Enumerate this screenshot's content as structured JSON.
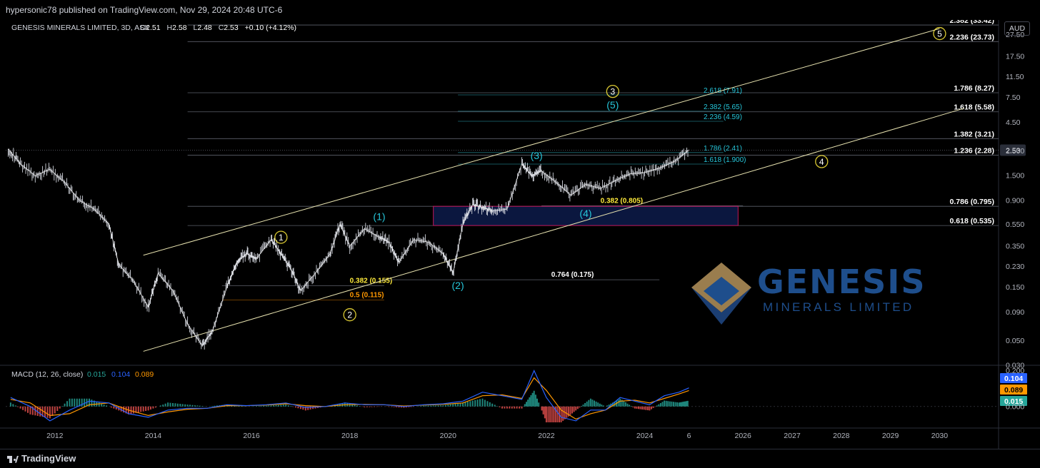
{
  "header": {
    "publish_line": "hypersonic78 published on TradingView.com, Nov 29, 2024 20:48 UTC-6",
    "symbol_line": "GENESIS MINERALS LIMITED, 3D, ASX",
    "ohlc": {
      "o_label": "O",
      "o": "2.51",
      "h_label": "H",
      "h": "2.58",
      "l_label": "L",
      "l": "2.48",
      "c_label": "C",
      "c": "2.53",
      "change": "+0.10 (+4.12%)"
    },
    "currency": "AUD"
  },
  "footer": {
    "brand": "TradingView"
  },
  "logo": {
    "line1": "GENESIS",
    "line2": "MINERALS LIMITED"
  },
  "colors": {
    "up": "#26a69a",
    "down": "#ef5350",
    "cyan": "#26c6da",
    "yellow": "#ffeb3b",
    "orange": "#ff9800",
    "macd": "#2962ff",
    "signal": "#ff9800",
    "box_border": "#c2185b",
    "box_fill": "#0d1b4a",
    "channel": "#e8e3b0",
    "price_tag": "#2a2e39"
  },
  "chart_data": [
    {
      "type": "line",
      "title": "GENESIS MINERALS LIMITED, 3D, ASX",
      "y_scale": "log",
      "ylim": [
        0.03,
        36
      ],
      "xlim": [
        2011.0,
        2031.2
      ],
      "x_ticks": [
        "2012",
        "2014",
        "2016",
        "2018",
        "2020",
        "2022",
        "2024",
        "6",
        "2026",
        "2027",
        "2028",
        "2029",
        "2030"
      ],
      "x_tick_values": [
        2012,
        2014,
        2016,
        2018,
        2020,
        2022,
        2024,
        2024.9,
        2026,
        2027,
        2028,
        2029,
        2030
      ],
      "y_ticks": [
        "27.50",
        "17.50",
        "11.50",
        "7.50",
        "4.50",
        "2.500",
        "1.500",
        "0.900",
        "0.550",
        "0.350",
        "0.230",
        "0.150",
        "0.090",
        "0.050",
        "0.030"
      ],
      "y_tick_values": [
        27.5,
        17.5,
        11.5,
        7.5,
        4.5,
        2.5,
        1.5,
        0.9,
        0.55,
        0.35,
        0.23,
        0.15,
        0.09,
        0.05,
        0.03
      ],
      "series": [
        {
          "x": [
            2011.05,
            2011.3,
            2011.6,
            2011.9,
            2012.2,
            2012.5,
            2012.8,
            2013.1,
            2013.3,
            2013.6,
            2013.9,
            2014.1,
            2014.4,
            2014.7,
            2015.0,
            2015.2,
            2015.5,
            2015.7,
            2015.9,
            2016.1,
            2016.4,
            2016.6,
            2016.8,
            2017.0,
            2017.3,
            2017.6,
            2017.8,
            2018.0,
            2018.3,
            2018.6,
            2018.8,
            2019.0,
            2019.3,
            2019.6,
            2019.9,
            2020.1,
            2020.3,
            2020.5,
            2020.7,
            2020.9,
            2021.2,
            2021.5,
            2021.7,
            2021.9,
            2022.2,
            2022.5,
            2022.8,
            2023.1,
            2023.4,
            2023.7,
            2024.0,
            2024.3,
            2024.6,
            2024.9
          ],
          "y": [
            2.6,
            1.9,
            1.5,
            1.7,
            1.3,
            0.9,
            0.75,
            0.55,
            0.24,
            0.17,
            0.1,
            0.2,
            0.14,
            0.07,
            0.045,
            0.06,
            0.15,
            0.25,
            0.3,
            0.27,
            0.4,
            0.3,
            0.22,
            0.14,
            0.2,
            0.3,
            0.55,
            0.35,
            0.5,
            0.42,
            0.38,
            0.25,
            0.4,
            0.38,
            0.3,
            0.2,
            0.55,
            0.82,
            0.78,
            0.72,
            0.75,
            1.9,
            1.5,
            1.65,
            1.3,
            1.0,
            1.25,
            1.15,
            1.35,
            1.55,
            1.6,
            1.75,
            2.0,
            2.55
          ]
        }
      ],
      "channel_lines": [
        {
          "x": [
            2013.8,
            2030.0
          ],
          "y": [
            0.29,
            31.0
          ]
        },
        {
          "x": [
            2013.8,
            2030.5
          ],
          "y": [
            0.04,
            6.0
          ]
        }
      ],
      "fib_levels_right": [
        {
          "label": "2.382 (33.42)",
          "value": 33.42
        },
        {
          "label": "2.236 (23.73)",
          "value": 23.73
        },
        {
          "label": "1.786 (8.27)",
          "value": 8.27
        },
        {
          "label": "1.618 (5.58)",
          "value": 5.58
        },
        {
          "label": "1.382 (3.21)",
          "value": 3.21
        },
        {
          "label": "1.236 (2.28)",
          "value": 2.28
        },
        {
          "label": "0.786 (0.795)",
          "value": 0.795
        },
        {
          "label": "0.618 (0.535)",
          "value": 0.535
        }
      ],
      "fib_levels_cyan": [
        {
          "label": "2.618 (7.91)",
          "value": 7.91
        },
        {
          "label": "2.382 (5.65)",
          "value": 5.65
        },
        {
          "label": "2.236 (4.59)",
          "value": 4.59
        },
        {
          "label": "1.786 (2.41)",
          "value": 2.41
        },
        {
          "label": "1.618 (1.900)",
          "value": 1.9
        }
      ],
      "fib_levels_other": [
        {
          "label": "0.382 (0.805)",
          "value": 0.805,
          "color": "yellow"
        },
        {
          "label": "0.382 (0.155)",
          "value": 0.155,
          "color": "yellow"
        },
        {
          "label": "0.5 (0.115)",
          "value": 0.115,
          "color": "orange"
        },
        {
          "label": "0.764 (0.175)",
          "value": 0.175,
          "color": "white"
        }
      ],
      "wave_labels_circle": [
        {
          "label": "1",
          "x": 2016.6,
          "y": 0.42
        },
        {
          "label": "2",
          "x": 2018.0,
          "y": 0.085
        },
        {
          "label": "3",
          "x": 2023.35,
          "y": 8.5
        },
        {
          "label": "4",
          "x": 2027.6,
          "y": 2.0
        },
        {
          "label": "5",
          "x": 2030.0,
          "y": 28.0
        }
      ],
      "wave_labels_paren": [
        {
          "label": "(1)",
          "x": 2018.6,
          "y": 0.6
        },
        {
          "label": "(2)",
          "x": 2020.2,
          "y": 0.145
        },
        {
          "label": "(3)",
          "x": 2021.8,
          "y": 2.1
        },
        {
          "label": "(4)",
          "x": 2022.8,
          "y": 0.64
        },
        {
          "label": "(5)",
          "x": 2023.35,
          "y": 6.0
        }
      ],
      "box": {
        "x": [
          2019.7,
          2025.9
        ],
        "y": [
          0.535,
          0.795
        ]
      },
      "last_price": {
        "label": "2.53",
        "value": 2.53
      }
    },
    {
      "type": "line",
      "title": "MACD (12, 26, close)",
      "legend_values": [
        "0.015",
        "0.104",
        "0.089"
      ],
      "ylim": [
        -0.12,
        0.21
      ],
      "y_ticks": [
        "0.200",
        "0.000"
      ],
      "y_tick_values": [
        0.2,
        0.0
      ],
      "series": [
        {
          "name": "MACD",
          "x": [
            2011.1,
            2011.5,
            2011.9,
            2012.3,
            2012.7,
            2013.1,
            2013.5,
            2013.9,
            2014.3,
            2014.7,
            2015.1,
            2015.5,
            2015.9,
            2016.3,
            2016.7,
            2017.1,
            2017.5,
            2017.9,
            2018.3,
            2018.7,
            2019.1,
            2019.5,
            2019.9,
            2020.3,
            2020.7,
            2021.1,
            2021.5,
            2021.75,
            2022.0,
            2022.3,
            2022.6,
            2022.9,
            2023.2,
            2023.5,
            2023.8,
            2024.1,
            2024.4,
            2024.7,
            2024.9
          ],
          "y": [
            0.05,
            0.0,
            -0.08,
            -0.02,
            0.03,
            0.02,
            -0.04,
            -0.06,
            -0.02,
            -0.01,
            -0.01,
            0.01,
            0.005,
            0.01,
            0.02,
            -0.005,
            0.0,
            0.02,
            0.01,
            0.01,
            0.0,
            0.01,
            0.015,
            0.03,
            0.08,
            0.06,
            0.04,
            0.2,
            0.05,
            -0.06,
            -0.08,
            -0.02,
            -0.02,
            0.05,
            0.03,
            0.01,
            0.06,
            0.08,
            0.104
          ]
        },
        {
          "name": "Signal",
          "x": [
            2011.1,
            2011.5,
            2011.9,
            2012.3,
            2012.7,
            2013.1,
            2013.5,
            2013.9,
            2014.3,
            2014.7,
            2015.1,
            2015.5,
            2015.9,
            2016.3,
            2016.7,
            2017.1,
            2017.5,
            2017.9,
            2018.3,
            2018.7,
            2019.1,
            2019.5,
            2019.9,
            2020.3,
            2020.7,
            2021.1,
            2021.5,
            2021.75,
            2022.0,
            2022.3,
            2022.6,
            2022.9,
            2023.2,
            2023.5,
            2023.8,
            2024.1,
            2024.4,
            2024.7,
            2024.9
          ],
          "y": [
            0.04,
            0.02,
            -0.05,
            -0.04,
            0.01,
            0.02,
            -0.02,
            -0.05,
            -0.03,
            -0.015,
            -0.01,
            0.005,
            0.005,
            0.008,
            0.015,
            0.005,
            0.0,
            0.01,
            0.012,
            0.01,
            0.003,
            0.008,
            0.012,
            0.02,
            0.06,
            0.065,
            0.045,
            0.16,
            0.09,
            -0.02,
            -0.07,
            -0.04,
            -0.02,
            0.03,
            0.035,
            0.02,
            0.045,
            0.07,
            0.089
          ]
        }
      ]
    }
  ]
}
